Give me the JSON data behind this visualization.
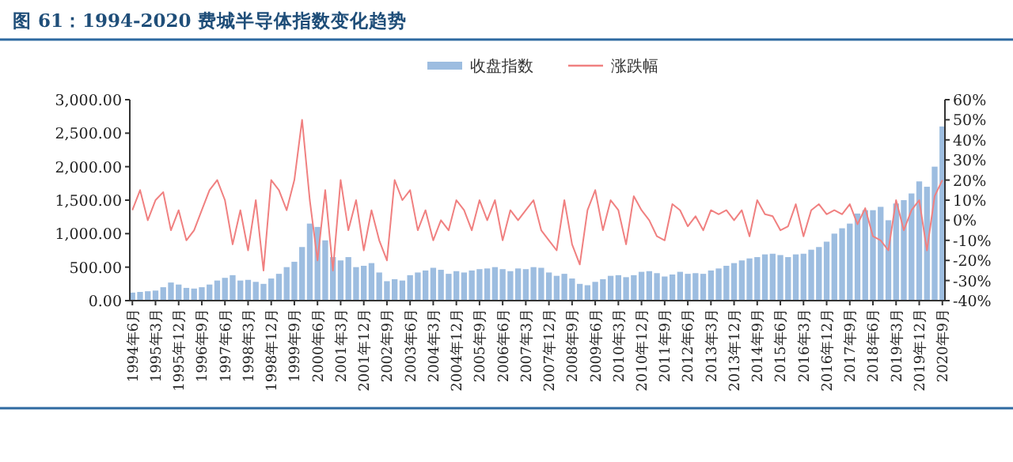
{
  "chart_data": {
    "type": "bar",
    "title": "图 61：1994-2020 费城半导体指数变化趋势",
    "x": [
      "1994-06",
      "1994-09",
      "1994-12",
      "1995-03",
      "1995-06",
      "1995-09",
      "1995-12",
      "1996-03",
      "1996-06",
      "1996-09",
      "1996-12",
      "1997-03",
      "1997-06",
      "1997-09",
      "1997-12",
      "1998-03",
      "1998-06",
      "1998-09",
      "1998-12",
      "1999-03",
      "1999-06",
      "1999-09",
      "1999-12",
      "2000-03",
      "2000-06",
      "2000-09",
      "2000-12",
      "2001-03",
      "2001-06",
      "2001-09",
      "2001-12",
      "2002-03",
      "2002-06",
      "2002-09",
      "2002-12",
      "2003-03",
      "2003-06",
      "2003-09",
      "2003-12",
      "2004-03",
      "2004-06",
      "2004-09",
      "2004-12",
      "2005-03",
      "2005-06",
      "2005-09",
      "2005-12",
      "2006-03",
      "2006-06",
      "2006-09",
      "2006-12",
      "2007-03",
      "2007-06",
      "2007-09",
      "2007-12",
      "2008-03",
      "2008-06",
      "2008-09",
      "2008-12",
      "2009-03",
      "2009-06",
      "2009-09",
      "2009-12",
      "2010-03",
      "2010-06",
      "2010-09",
      "2010-12",
      "2011-03",
      "2011-06",
      "2011-09",
      "2011-12",
      "2012-03",
      "2012-06",
      "2012-09",
      "2012-12",
      "2013-03",
      "2013-06",
      "2013-09",
      "2013-12",
      "2014-03",
      "2014-06",
      "2014-09",
      "2014-12",
      "2015-03",
      "2015-06",
      "2015-09",
      "2015-12",
      "2016-03",
      "2016-06",
      "2016-09",
      "2016-12",
      "2017-03",
      "2017-06",
      "2017-09",
      "2017-12",
      "2018-03",
      "2018-06",
      "2018-09",
      "2018-12",
      "2019-03",
      "2019-06",
      "2019-09",
      "2019-12",
      "2020-03",
      "2020-06",
      "2020-09"
    ],
    "series": [
      {
        "name": "收盘指数",
        "color": "#9dbde0",
        "values": [
          120,
          130,
          140,
          150,
          200,
          270,
          240,
          190,
          180,
          200,
          240,
          300,
          340,
          380,
          300,
          310,
          280,
          250,
          330,
          400,
          500,
          580,
          800,
          1150,
          1100,
          900,
          650,
          600,
          650,
          500,
          520,
          560,
          420,
          290,
          320,
          300,
          380,
          420,
          450,
          490,
          460,
          400,
          440,
          420,
          450,
          470,
          480,
          500,
          470,
          440,
          480,
          470,
          500,
          490,
          420,
          370,
          400,
          330,
          250,
          230,
          280,
          320,
          370,
          380,
          350,
          380,
          430,
          440,
          410,
          360,
          390,
          430,
          400,
          410,
          400,
          450,
          480,
          520,
          560,
          600,
          630,
          650,
          690,
          700,
          680,
          650,
          690,
          700,
          760,
          800,
          880,
          1000,
          1080,
          1150,
          1300,
          1350,
          1350,
          1400,
          1200,
          1450,
          1500,
          1600,
          1780,
          1700,
          2000,
          2600
        ]
      },
      {
        "name": "涨跌幅",
        "type": "line",
        "axis": "y2",
        "color": "#f08080",
        "values": [
          5,
          15,
          0,
          10,
          14,
          -5,
          5,
          -10,
          -5,
          5,
          15,
          20,
          10,
          -12,
          5,
          -15,
          10,
          -25,
          20,
          15,
          5,
          20,
          50,
          10,
          -20,
          15,
          -25,
          20,
          -5,
          10,
          -15,
          5,
          -10,
          -20,
          20,
          10,
          15,
          -5,
          5,
          -10,
          0,
          -5,
          10,
          5,
          -5,
          10,
          0,
          10,
          -10,
          5,
          0,
          5,
          10,
          -5,
          -10,
          -15,
          10,
          -12,
          -22,
          5,
          15,
          -5,
          10,
          5,
          -12,
          12,
          5,
          0,
          -8,
          -10,
          8,
          5,
          -3,
          2,
          -5,
          5,
          3,
          5,
          0,
          5,
          -8,
          10,
          3,
          2,
          -5,
          -3,
          8,
          -8,
          5,
          8,
          3,
          5,
          3,
          8,
          -2,
          6,
          -8,
          -10,
          -15,
          10,
          -5,
          5,
          10,
          -15,
          12,
          20
        ]
      }
    ],
    "xlim": [
      "1994-05",
      "2020-10"
    ],
    "xticks": [
      {
        "value": "1994-06",
        "label": "1994年6月"
      },
      {
        "value": "1995-03",
        "label": "1995年3月"
      },
      {
        "value": "1995-12",
        "label": "1995年12月"
      },
      {
        "value": "1996-09",
        "label": "1996年9月"
      },
      {
        "value": "1997-06",
        "label": "1997年6月"
      },
      {
        "value": "1998-03",
        "label": "1998年3月"
      },
      {
        "value": "1998-12",
        "label": "1998年12月"
      },
      {
        "value": "1999-09",
        "label": "1999年9月"
      },
      {
        "value": "2000-06",
        "label": "2000年6月"
      },
      {
        "value": "2001-03",
        "label": "2001年3月"
      },
      {
        "value": "2001-12",
        "label": "2001年12月"
      },
      {
        "value": "2002-09",
        "label": "2002年9月"
      },
      {
        "value": "2003-06",
        "label": "2003年6月"
      },
      {
        "value": "2004-03",
        "label": "2004年3月"
      },
      {
        "value": "2004-12",
        "label": "2004年12月"
      },
      {
        "value": "2005-09",
        "label": "2005年9月"
      },
      {
        "value": "2006-06",
        "label": "2006年6月"
      },
      {
        "value": "2007-03",
        "label": "2007年3月"
      },
      {
        "value": "2007-12",
        "label": "2007年12月"
      },
      {
        "value": "2008-09",
        "label": "2008年9月"
      },
      {
        "value": "2009-06",
        "label": "2009年6月"
      },
      {
        "value": "2010-03",
        "label": "2010年3月"
      },
      {
        "value": "2010-12",
        "label": "2010年12月"
      },
      {
        "value": "2011-09",
        "label": "2011年9月"
      },
      {
        "value": "2012-06",
        "label": "2012年6月"
      },
      {
        "value": "2013-03",
        "label": "2013年3月"
      },
      {
        "value": "2013-12",
        "label": "2013年12月"
      },
      {
        "value": "2014-09",
        "label": "2014年9月"
      },
      {
        "value": "2015-06",
        "label": "2015年6月"
      },
      {
        "value": "2016-03",
        "label": "2016年3月"
      },
      {
        "value": "2016-12",
        "label": "2016年12月"
      },
      {
        "value": "2017-09",
        "label": "2017年9月"
      },
      {
        "value": "2018-06",
        "label": "2018年6月"
      },
      {
        "value": "2019-03",
        "label": "2019年3月"
      },
      {
        "value": "2019-12",
        "label": "2019年12月"
      },
      {
        "value": "2020-09",
        "label": "2020年9月"
      }
    ],
    "ylim": [
      0,
      3000
    ],
    "yticks": [
      {
        "value": 0,
        "label": "0.00"
      },
      {
        "value": 500,
        "label": "500.00"
      },
      {
        "value": 1000,
        "label": "1,000.00"
      },
      {
        "value": 1500,
        "label": "1,500.00"
      },
      {
        "value": 2000,
        "label": "2,000.00"
      },
      {
        "value": 2500,
        "label": "2,500.00"
      },
      {
        "value": 3000,
        "label": "3,000.00"
      }
    ],
    "y2lim": [
      -40,
      60
    ],
    "y2ticks": [
      {
        "value": -40,
        "label": "-40%"
      },
      {
        "value": -30,
        "label": "-30%"
      },
      {
        "value": -20,
        "label": "-20%"
      },
      {
        "value": -10,
        "label": "-10%"
      },
      {
        "value": 0,
        "label": "0%"
      },
      {
        "value": 10,
        "label": "10%"
      },
      {
        "value": 20,
        "label": "20%"
      },
      {
        "value": 30,
        "label": "30%"
      },
      {
        "value": 40,
        "label": "40%"
      },
      {
        "value": 50,
        "label": "50%"
      },
      {
        "value": 60,
        "label": "60%"
      }
    ],
    "legend": "top"
  }
}
